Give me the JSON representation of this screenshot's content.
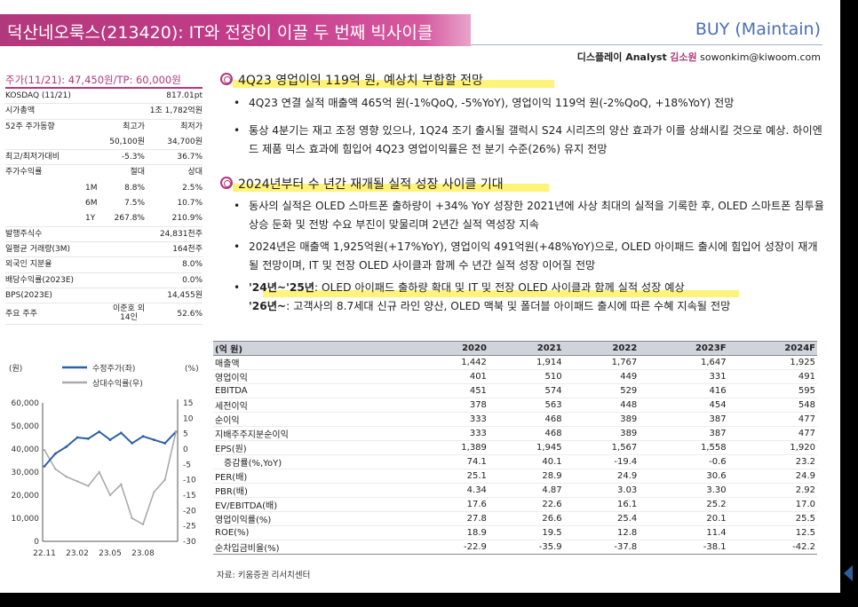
{
  "header": {
    "title": "덕산네오룩스(213420): IT와 전장이 이끌 두 번째 빅사이클",
    "rating": "BUY (Maintain)",
    "analyst_dept": "디스플레이 Analyst",
    "analyst_name": "김소원",
    "analyst_email": "sowonkim@kiwoom.com"
  },
  "price_line": "주가(11/21): 47,450원/TP: 60,000원",
  "stock_info": {
    "kosdaq_label": "KOSDAQ (11/21)",
    "kosdaq_value": "817.01pt",
    "mktcap_label": "시가총액",
    "mktcap_value": "1조 1,782억원",
    "w52_label": "52주 주가동향",
    "w52_high_label": "최고가",
    "w52_low_label": "최저가",
    "w52_high": "50,100원",
    "w52_low": "34,700원",
    "vs_label": "최고/최저가대비",
    "vs_high": "-5.3%",
    "vs_low": "36.7%",
    "ret_label": "주가수익률",
    "ret_abs_label": "절대",
    "ret_rel_label": "상대",
    "returns": [
      {
        "period": "1M",
        "abs": "8.8%",
        "rel": "2.5%"
      },
      {
        "period": "6M",
        "abs": "7.5%",
        "rel": "10.7%"
      },
      {
        "period": "1Y",
        "abs": "267.8%",
        "rel": "210.9%"
      }
    ],
    "shares_label": "발행주식수",
    "shares_value": "24,831천주",
    "vol_label": "일평균 거래량(3M)",
    "vol_value": "164천주",
    "foreign_label": "외국인 지분율",
    "foreign_value": "8.0%",
    "div_label": "배당수익률(2023E)",
    "div_value": "0.0%",
    "bps_label": "BPS(2023E)",
    "bps_value": "14,455원",
    "holder_label": "주요 주주",
    "holder_name1": "이준호 외",
    "holder_name2": "14인",
    "holder_value": "52.6%"
  },
  "price_chart": {
    "left_unit": "(원)",
    "right_unit": "(%)",
    "legend_price": "수정주가(좌)",
    "legend_rel": "상대수익률(우)",
    "left_ticks": [
      "60,000",
      "50,000",
      "40,000",
      "30,000",
      "20,000",
      "10,000",
      "0"
    ],
    "right_ticks": [
      "15",
      "10",
      "5",
      "0",
      "-5",
      "-10",
      "-15",
      "-20",
      "-25",
      "-30"
    ],
    "x_ticks": [
      "22.11",
      "23.02",
      "23.05",
      "23.08"
    ],
    "colors": {
      "price": "#2f5fa8",
      "rel": "#aaaaaa"
    }
  },
  "chart_data": {
    "type": "line",
    "title": "",
    "x": [
      "22.11",
      "22.12",
      "23.01",
      "23.02",
      "23.03",
      "23.04",
      "23.05",
      "23.06",
      "23.07",
      "23.08",
      "23.09",
      "23.10",
      "23.11"
    ],
    "xlabel": "",
    "ylabel": "(원)",
    "y2label": "(%)",
    "ylim": [
      0,
      60000
    ],
    "y2lim": [
      -30,
      15
    ],
    "series": [
      {
        "name": "수정주가(좌)",
        "axis": "left",
        "values": [
          32500,
          38000,
          41000,
          45000,
          44500,
          47500,
          44000,
          47000,
          42500,
          45500,
          44000,
          42500,
          47450
        ]
      },
      {
        "name": "상대수익률(우)",
        "axis": "right",
        "values": [
          -0.3,
          -6.5,
          -9,
          -10.5,
          -12,
          -7.5,
          -15,
          -11.5,
          -22.5,
          -24.5,
          -14,
          -10,
          5.5
        ]
      }
    ],
    "legend": "top"
  },
  "section1": {
    "heading": "4Q23 영업이익 119억 원, 예상치 부합할 전망",
    "bullets": [
      "4Q23 연결 실적 매출액 465억 원(-1%QoQ, -5%YoY), 영업이익 119억 원(-2%QoQ, +18%YoY) 전망",
      "통상 4분기는 재고 조정 영향 있으나, 1Q24 조기 출시될 갤럭시 S24 시리즈의 양산 효과가 이를 상쇄시킬 것으로 예상. 하이엔드 제품 믹스 효과에 힘입어 4Q23 영업이익률은 전 분기 수준(26%) 유지 전망"
    ]
  },
  "section2": {
    "heading": "2024년부터 수 년간 재개될 실적 성장 사이클 기대",
    "bullets": [
      "동사의 실적은 OLED 스마트폰 출하량이 +34% YoY 성장한 2021년에 사상 최대의 실적을 기록한 후, OLED 스마트폰 침투율 상승 둔화 및 전방 수요 부진이 맞물리며 2년간 실적 역성장 지속",
      "2024년은 매출액 1,925억원(+17%YoY), 영업이익 491억원(+48%YoY)으로, OLED 아이패드 출시에 힘입어 성장이 재개될 전망이며, IT 및 전장 OLED 사이클과 함께 수 년간 실적 성장 이어질 전망"
    ],
    "bullet3_lead1": "'24년~'25년",
    "bullet3_text1": ": OLED 아이패드 출하량 확대 및 IT 및 전장 OLED 사이클과 함께 실적 성장 예상",
    "bullet3_lead2": "'26년~",
    "bullet3_text2": ": 고객사의 8.7세대 신규 라인 양산, OLED 맥북 및 폴더블 아이패드 출시에 따른 수혜 지속될 전망"
  },
  "financials": {
    "unit_label": "(억 원)",
    "years": [
      "2020",
      "2021",
      "2022",
      "2023F",
      "2024F"
    ],
    "rows": [
      {
        "label": "매출액",
        "v": [
          "1,442",
          "1,914",
          "1,767",
          "1,647",
          "1,925"
        ]
      },
      {
        "label": "영업이익",
        "v": [
          "401",
          "510",
          "449",
          "331",
          "491"
        ]
      },
      {
        "label": "EBITDA",
        "v": [
          "451",
          "574",
          "529",
          "416",
          "595"
        ]
      },
      {
        "label": "세전이익",
        "v": [
          "378",
          "563",
          "448",
          "454",
          "548"
        ]
      },
      {
        "label": "순이익",
        "v": [
          "333",
          "468",
          "389",
          "387",
          "477"
        ]
      },
      {
        "label": "지배주주지분순이익",
        "v": [
          "333",
          "468",
          "389",
          "387",
          "477"
        ]
      },
      {
        "label": "EPS(원)",
        "v": [
          "1,389",
          "1,945",
          "1,567",
          "1,558",
          "1,920"
        ]
      },
      {
        "label": "증감률(%,YoY)",
        "v": [
          "74.1",
          "40.1",
          "-19.4",
          "-0.6",
          "23.2"
        ]
      },
      {
        "label": "PER(배)",
        "v": [
          "25.1",
          "28.9",
          "24.9",
          "30.6",
          "24.9"
        ]
      },
      {
        "label": "PBR(배)",
        "v": [
          "4.34",
          "4.87",
          "3.03",
          "3.30",
          "2.92"
        ]
      },
      {
        "label": "EV/EBITDA(배)",
        "v": [
          "17.6",
          "22.6",
          "16.1",
          "25.2",
          "17.0"
        ]
      },
      {
        "label": "영업이익률(%)",
        "v": [
          "27.8",
          "26.6",
          "25.4",
          "20.1",
          "25.5"
        ]
      },
      {
        "label": "ROE(%)",
        "v": [
          "18.9",
          "19.5",
          "12.8",
          "11.4",
          "12.5"
        ]
      },
      {
        "label": "순차입금비율(%)",
        "v": [
          "-22.9",
          "-35.9",
          "-37.8",
          "-38.1",
          "-42.2"
        ]
      }
    ],
    "source": "자료: 키움증권 리서치센터"
  }
}
